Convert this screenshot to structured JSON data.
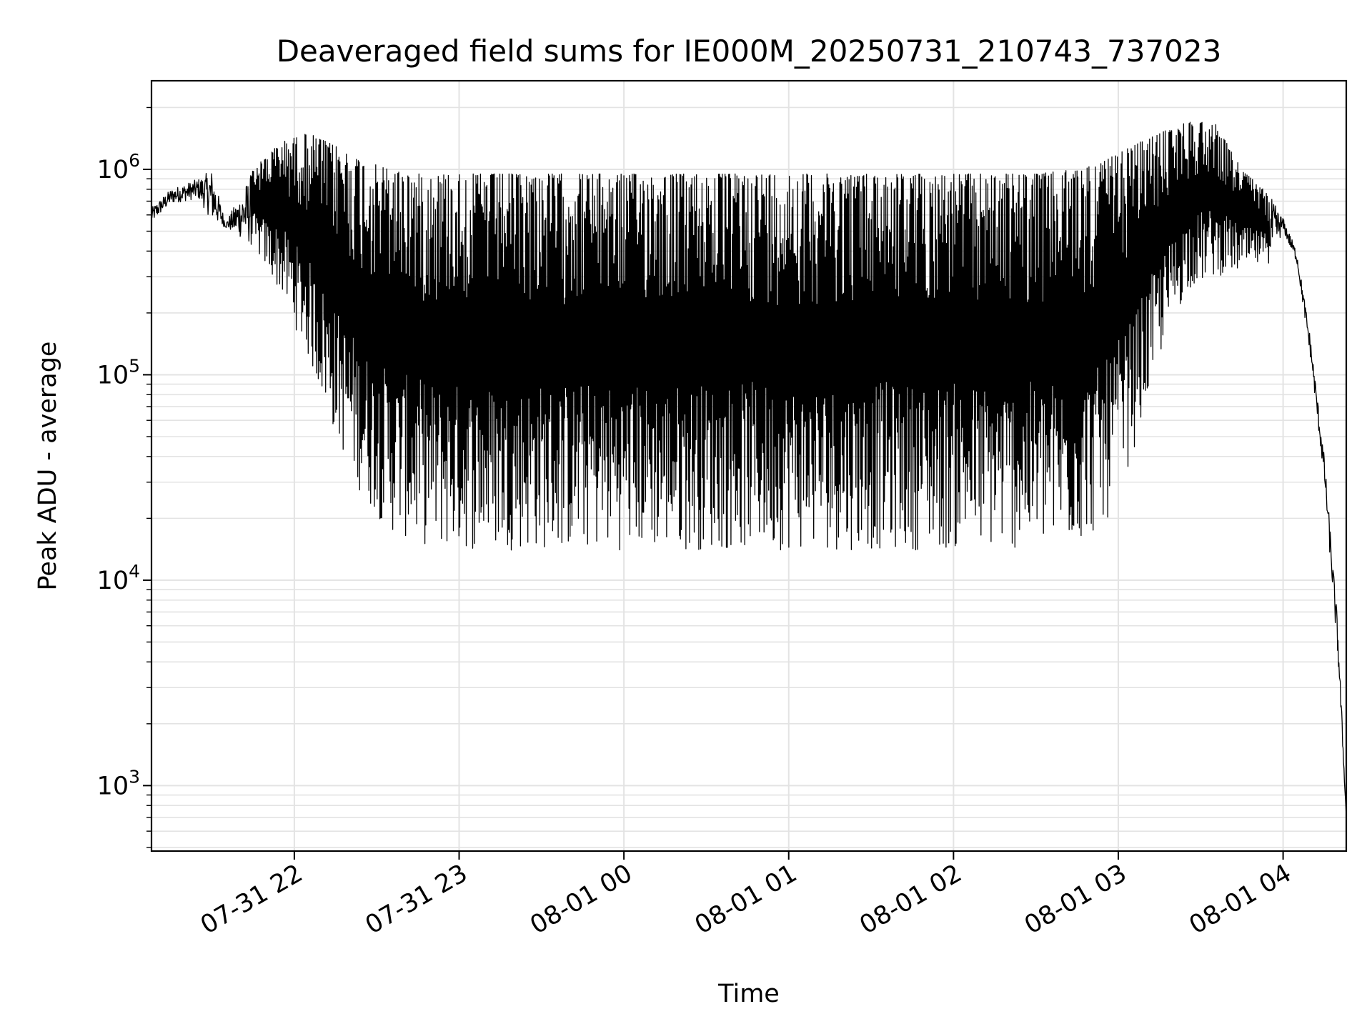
{
  "chart_data": {
    "type": "line",
    "title": "Deaveraged field sums for IE000M_20250731_210743_737023",
    "xlabel": "Time",
    "ylabel": "Peak ADU - average",
    "y_scale": "log",
    "grid": true,
    "x_range": [
      "2025-07-31T21:08",
      "2025-08-01T04:23"
    ],
    "ylim": [
      480,
      2700000
    ],
    "x_ticks": [
      "07-31 22",
      "07-31 23",
      "08-01 00",
      "08-01 01",
      "08-01 02",
      "08-01 03",
      "08-01 04"
    ],
    "y_ticks": [
      {
        "value": 1000,
        "base": "10",
        "exp": "3"
      },
      {
        "value": 10000,
        "base": "10",
        "exp": "4"
      },
      {
        "value": 100000,
        "base": "10",
        "exp": "5"
      },
      {
        "value": 1000000,
        "base": "10",
        "exp": "6"
      }
    ],
    "envelope": {
      "x": [
        "2025-07-31T21:08",
        "2025-07-31T21:15",
        "2025-07-31T21:25",
        "2025-07-31T21:30",
        "2025-07-31T21:35",
        "2025-07-31T21:45",
        "2025-07-31T21:55",
        "2025-07-31T22:05",
        "2025-07-31T22:15",
        "2025-07-31T22:25",
        "2025-07-31T22:35",
        "2025-07-31T22:45",
        "2025-07-31T22:55",
        "2025-07-31T23:05",
        "2025-07-31T23:30",
        "2025-08-01T00:00",
        "2025-08-01T00:30",
        "2025-08-01T01:00",
        "2025-08-01T01:30",
        "2025-08-01T02:00",
        "2025-08-01T02:30",
        "2025-08-01T02:45",
        "2025-08-01T02:55",
        "2025-08-01T03:05",
        "2025-08-01T03:15",
        "2025-08-01T03:25",
        "2025-08-01T03:35",
        "2025-08-01T03:45",
        "2025-08-01T03:55",
        "2025-08-01T04:00",
        "2025-08-01T04:05",
        "2025-08-01T04:10",
        "2025-08-01T04:15",
        "2025-08-01T04:20",
        "2025-08-01T04:23"
      ],
      "upper": [
        650000,
        800000,
        900000,
        1000000,
        550000,
        1000000,
        1350000,
        1500000,
        1300000,
        1100000,
        1000000,
        950000,
        950000,
        950000,
        950000,
        950000,
        950000,
        950000,
        950000,
        950000,
        950000,
        1000000,
        1100000,
        1300000,
        1500000,
        1700000,
        1700000,
        1000000,
        750000,
        580000,
        400000,
        150000,
        40000,
        6000,
        700
      ],
      "lower": [
        550000,
        680000,
        720000,
        560000,
        520000,
        420000,
        250000,
        120000,
        50000,
        25000,
        17000,
        15000,
        14000,
        14000,
        14000,
        14000,
        14000,
        14000,
        14000,
        14000,
        14000,
        15000,
        18000,
        40000,
        120000,
        260000,
        300000,
        320000,
        350000,
        500000,
        350000,
        120000,
        30000,
        4000,
        700
      ]
    }
  }
}
